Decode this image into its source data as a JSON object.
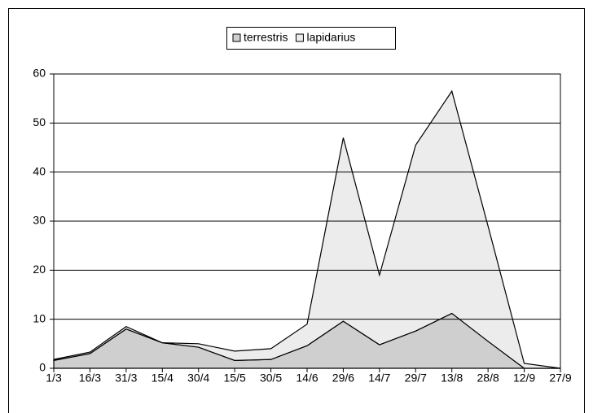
{
  "chart_data": {
    "type": "area",
    "stacked": true,
    "categories": [
      "1/3",
      "16/3",
      "31/3",
      "15/4",
      "30/4",
      "15/5",
      "30/5",
      "14/6",
      "29/6",
      "14/7",
      "29/7",
      "13/8",
      "28/8",
      "12/9",
      "27/9"
    ],
    "series": [
      {
        "name": "terrestris",
        "color": "#cfcfcf",
        "values": [
          1.6,
          3,
          8,
          5.2,
          4.3,
          1.6,
          1.8,
          4.6,
          9.6,
          4.8,
          7.6,
          11.2,
          5.5,
          0,
          0
        ]
      },
      {
        "name": "lapidarius",
        "color": "#ececec",
        "values": [
          0.2,
          0.3,
          0.5,
          0,
          0.7,
          1.9,
          2.2,
          4.4,
          37.4,
          14.2,
          37.9,
          45.3,
          23.5,
          1,
          0
        ]
      }
    ],
    "ylim": [
      0,
      60
    ],
    "yticks": [
      0,
      10,
      20,
      30,
      40,
      50,
      60
    ],
    "grid": true,
    "legend": "top"
  }
}
